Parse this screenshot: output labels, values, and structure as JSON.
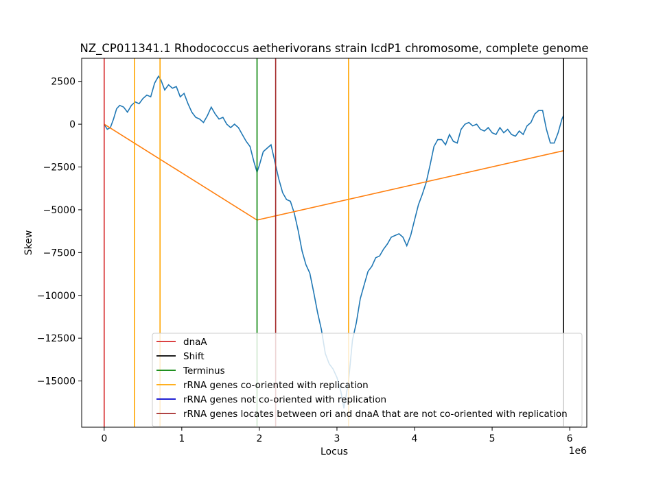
{
  "chart_data": {
    "type": "line",
    "title": "NZ_CP011341.1 Rhodococcus aetherivorans strain IcdP1 chromosome, complete genome",
    "xlabel": "Locus",
    "ylabel": "Skew",
    "x_offset_label": "1e6",
    "xlim": [
      -290000,
      6220000
    ],
    "ylim": [
      -17700,
      3850
    ],
    "x_ticks": [
      0,
      1000000,
      2000000,
      3000000,
      4000000,
      5000000,
      6000000
    ],
    "x_tick_labels": [
      "0",
      "1",
      "2",
      "3",
      "4",
      "5",
      "6"
    ],
    "y_ticks": [
      2500,
      0,
      -2500,
      -5000,
      -7500,
      -10000,
      -12500,
      -15000
    ],
    "y_tick_labels": [
      "2500",
      "0",
      "−2500",
      "−5000",
      "−7500",
      "−10000",
      "−12500",
      "−15000"
    ],
    "grid": false,
    "legend_position": "bottom-right",
    "skew_series": {
      "color": "#1f77b4",
      "points": [
        [
          0,
          0
        ],
        [
          40000,
          -300
        ],
        [
          80000,
          -200
        ],
        [
          120000,
          300
        ],
        [
          160000,
          900
        ],
        [
          200000,
          1100
        ],
        [
          250000,
          1000
        ],
        [
          300000,
          700
        ],
        [
          350000,
          1100
        ],
        [
          400000,
          1300
        ],
        [
          450000,
          1200
        ],
        [
          500000,
          1500
        ],
        [
          550000,
          1700
        ],
        [
          600000,
          1600
        ],
        [
          650000,
          2400
        ],
        [
          700000,
          2800
        ],
        [
          730000,
          2600
        ],
        [
          780000,
          2000
        ],
        [
          830000,
          2300
        ],
        [
          880000,
          2100
        ],
        [
          930000,
          2200
        ],
        [
          980000,
          1600
        ],
        [
          1030000,
          1800
        ],
        [
          1080000,
          1200
        ],
        [
          1130000,
          700
        ],
        [
          1180000,
          400
        ],
        [
          1230000,
          300
        ],
        [
          1280000,
          100
        ],
        [
          1330000,
          500
        ],
        [
          1380000,
          1000
        ],
        [
          1430000,
          600
        ],
        [
          1480000,
          300
        ],
        [
          1530000,
          400
        ],
        [
          1580000,
          0
        ],
        [
          1630000,
          -200
        ],
        [
          1680000,
          0
        ],
        [
          1730000,
          -200
        ],
        [
          1780000,
          -600
        ],
        [
          1830000,
          -1000
        ],
        [
          1880000,
          -1300
        ],
        [
          1930000,
          -2200
        ],
        [
          1970000,
          -2800
        ],
        [
          2000000,
          -2400
        ],
        [
          2050000,
          -1600
        ],
        [
          2100000,
          -1400
        ],
        [
          2150000,
          -1200
        ],
        [
          2200000,
          -2200
        ],
        [
          2250000,
          -3200
        ],
        [
          2300000,
          -4000
        ],
        [
          2350000,
          -4400
        ],
        [
          2400000,
          -4500
        ],
        [
          2450000,
          -5200
        ],
        [
          2500000,
          -6200
        ],
        [
          2550000,
          -7400
        ],
        [
          2600000,
          -8200
        ],
        [
          2650000,
          -8700
        ],
        [
          2700000,
          -9800
        ],
        [
          2750000,
          -11000
        ],
        [
          2800000,
          -12000
        ],
        [
          2850000,
          -13400
        ],
        [
          2900000,
          -14000
        ],
        [
          2950000,
          -14300
        ],
        [
          3000000,
          -14800
        ],
        [
          3050000,
          -15600
        ],
        [
          3090000,
          -16600
        ],
        [
          3150000,
          -15000
        ],
        [
          3200000,
          -12600
        ],
        [
          3250000,
          -11600
        ],
        [
          3300000,
          -10200
        ],
        [
          3350000,
          -9400
        ],
        [
          3400000,
          -8600
        ],
        [
          3450000,
          -8300
        ],
        [
          3500000,
          -7800
        ],
        [
          3550000,
          -7700
        ],
        [
          3600000,
          -7300
        ],
        [
          3650000,
          -7000
        ],
        [
          3700000,
          -6600
        ],
        [
          3750000,
          -6500
        ],
        [
          3800000,
          -6400
        ],
        [
          3850000,
          -6600
        ],
        [
          3900000,
          -7100
        ],
        [
          3950000,
          -6500
        ],
        [
          4000000,
          -5600
        ],
        [
          4050000,
          -4700
        ],
        [
          4100000,
          -4100
        ],
        [
          4150000,
          -3400
        ],
        [
          4200000,
          -2400
        ],
        [
          4250000,
          -1300
        ],
        [
          4300000,
          -900
        ],
        [
          4350000,
          -900
        ],
        [
          4400000,
          -1200
        ],
        [
          4450000,
          -600
        ],
        [
          4500000,
          -1000
        ],
        [
          4550000,
          -1100
        ],
        [
          4600000,
          -300
        ],
        [
          4650000,
          0
        ],
        [
          4700000,
          100
        ],
        [
          4750000,
          -100
        ],
        [
          4800000,
          0
        ],
        [
          4850000,
          -300
        ],
        [
          4900000,
          -400
        ],
        [
          4950000,
          -200
        ],
        [
          5000000,
          -500
        ],
        [
          5050000,
          -600
        ],
        [
          5100000,
          -200
        ],
        [
          5150000,
          -500
        ],
        [
          5200000,
          -300
        ],
        [
          5250000,
          -600
        ],
        [
          5300000,
          -700
        ],
        [
          5350000,
          -400
        ],
        [
          5400000,
          -600
        ],
        [
          5450000,
          -100
        ],
        [
          5500000,
          100
        ],
        [
          5550000,
          600
        ],
        [
          5600000,
          800
        ],
        [
          5650000,
          800
        ],
        [
          5700000,
          -300
        ],
        [
          5750000,
          -1100
        ],
        [
          5800000,
          -1100
        ],
        [
          5850000,
          -500
        ],
        [
          5900000,
          300
        ],
        [
          5920000,
          500
        ]
      ]
    },
    "trend_series": {
      "color": "#ff7f0e",
      "points": [
        [
          0,
          0
        ],
        [
          1970000,
          -5600
        ],
        [
          5920000,
          -1550
        ]
      ]
    },
    "markers": [
      {
        "name": "dnaA",
        "x": 0,
        "color": "#d62728"
      },
      {
        "name": "Shift",
        "x": 5920000,
        "color": "#000000"
      },
      {
        "name": "Terminus",
        "x": 1970000,
        "color": "#008000"
      },
      {
        "name": "rRNA genes co-oriented with replication",
        "x": 390000,
        "color": "#ffa500"
      },
      {
        "name": "rRNA genes co-oriented with replication",
        "x": 720000,
        "color": "#ffa500"
      },
      {
        "name": "rRNA genes co-oriented with replication",
        "x": 3150000,
        "color": "#ffa500"
      },
      {
        "name": "rRNA genes locates between ori and dnaA that are not co-oriented with replication",
        "x": 2210000,
        "color": "#a52a2a"
      }
    ],
    "legend": [
      {
        "label": "dnaA",
        "color": "#d62728"
      },
      {
        "label": "Shift",
        "color": "#000000"
      },
      {
        "label": "Terminus",
        "color": "#008000"
      },
      {
        "label": "rRNA genes co-oriented with replication",
        "color": "#ffa500"
      },
      {
        "label": "rRNA genes not co-oriented with replication",
        "color": "#0000cd"
      },
      {
        "label": "rRNA genes locates between ori and dnaA that are not co-oriented with replication",
        "color": "#a52a2a"
      }
    ]
  }
}
